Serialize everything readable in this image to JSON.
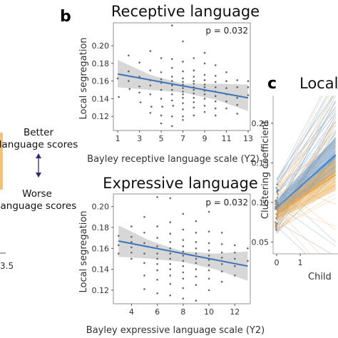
{
  "figure": {
    "panel_b_letter": "b",
    "panel_c_letter": "c",
    "left_partial_tick": "3.5",
    "scale_labels": {
      "better": "Better",
      "better2": "language scores",
      "worse": "Worse",
      "worse2": "language scores"
    }
  },
  "chart_data": [
    {
      "type": "scatter",
      "title": "Receptive language",
      "xlabel": "Bayley receptive language scale (Y2)",
      "ylabel": "Local segregation",
      "annotation": "p = 0.032",
      "xlim": [
        0.6,
        13.2
      ],
      "ylim": [
        0.104,
        0.226
      ],
      "xticks": [
        1,
        3,
        5,
        7,
        9,
        11,
        13
      ],
      "yticks": [
        0.12,
        0.14,
        0.16,
        0.18,
        0.2
      ],
      "ytick_labels": [
        "0.12",
        "0.14",
        "0.16",
        "0.18",
        "0.20"
      ],
      "fit": {
        "x": [
          1,
          13
        ],
        "y": [
          0.168,
          0.141
        ]
      },
      "ci_band": {
        "x": [
          1,
          4,
          7,
          10,
          13
        ],
        "lower": [
          0.153,
          0.15,
          0.147,
          0.139,
          0.126
        ],
        "upper": [
          0.184,
          0.167,
          0.157,
          0.157,
          0.156
        ]
      },
      "points": [
        [
          1,
          0.163
        ],
        [
          1.1,
          0.142
        ],
        [
          2,
          0.16
        ],
        [
          2,
          0.171
        ],
        [
          2,
          0.189
        ],
        [
          2.1,
          0.151
        ],
        [
          3,
          0.181
        ],
        [
          3,
          0.165
        ],
        [
          3,
          0.154
        ],
        [
          3,
          0.147
        ],
        [
          3.1,
          0.136
        ],
        [
          4,
          0.194
        ],
        [
          4,
          0.172
        ],
        [
          4,
          0.161
        ],
        [
          4,
          0.155
        ],
        [
          4,
          0.145
        ],
        [
          4.1,
          0.131
        ],
        [
          4,
          0.124
        ],
        [
          5,
          0.186
        ],
        [
          5,
          0.17
        ],
        [
          5,
          0.162
        ],
        [
          5,
          0.158
        ],
        [
          5,
          0.15
        ],
        [
          5,
          0.14
        ],
        [
          5.1,
          0.131
        ],
        [
          5,
          0.121
        ],
        [
          5,
          0.112
        ],
        [
          6,
          0.223
        ],
        [
          6,
          0.185
        ],
        [
          6,
          0.175
        ],
        [
          6,
          0.165
        ],
        [
          6,
          0.16
        ],
        [
          6,
          0.155
        ],
        [
          6,
          0.15
        ],
        [
          6,
          0.145
        ],
        [
          6,
          0.138
        ],
        [
          6.1,
          0.132
        ],
        [
          6,
          0.12
        ],
        [
          6,
          0.109
        ],
        [
          7,
          0.205
        ],
        [
          7,
          0.182
        ],
        [
          7,
          0.171
        ],
        [
          7,
          0.163
        ],
        [
          7,
          0.159
        ],
        [
          7,
          0.156
        ],
        [
          7,
          0.152
        ],
        [
          7,
          0.148
        ],
        [
          7,
          0.145
        ],
        [
          7,
          0.141
        ],
        [
          7,
          0.135
        ],
        [
          7,
          0.128
        ],
        [
          7,
          0.12
        ],
        [
          7,
          0.116
        ],
        [
          8,
          0.186
        ],
        [
          8,
          0.172
        ],
        [
          8,
          0.165
        ],
        [
          8,
          0.16
        ],
        [
          8,
          0.157
        ],
        [
          8,
          0.153
        ],
        [
          8,
          0.15
        ],
        [
          8,
          0.146
        ],
        [
          8,
          0.141
        ],
        [
          8,
          0.136
        ],
        [
          8,
          0.13
        ],
        [
          8,
          0.121
        ],
        [
          9,
          0.192
        ],
        [
          9,
          0.18
        ],
        [
          9,
          0.167
        ],
        [
          9,
          0.161
        ],
        [
          9,
          0.156
        ],
        [
          9,
          0.153
        ],
        [
          9,
          0.149
        ],
        [
          9,
          0.145
        ],
        [
          9,
          0.14
        ],
        [
          9,
          0.132
        ],
        [
          9,
          0.125
        ],
        [
          10,
          0.178
        ],
        [
          10,
          0.166
        ],
        [
          10,
          0.159
        ],
        [
          10,
          0.153
        ],
        [
          10,
          0.148
        ],
        [
          10,
          0.143
        ],
        [
          10,
          0.137
        ],
        [
          10,
          0.129
        ],
        [
          10,
          0.121
        ],
        [
          11,
          0.17
        ],
        [
          11,
          0.16
        ],
        [
          11,
          0.152
        ],
        [
          11,
          0.145
        ],
        [
          11,
          0.137
        ],
        [
          11,
          0.129
        ],
        [
          12,
          0.161
        ],
        [
          12,
          0.153
        ],
        [
          12,
          0.141
        ],
        [
          12,
          0.133
        ],
        [
          12,
          0.123
        ],
        [
          13,
          0.16
        ],
        [
          13,
          0.144
        ],
        [
          13,
          0.153
        ]
      ]
    },
    {
      "type": "scatter",
      "title": "Expressive language",
      "xlabel": "Bayley expressive language scale (Y2)",
      "ylabel": "Local segregation",
      "annotation": "p = 0.032",
      "xlim": [
        2.6,
        13.2
      ],
      "ylim": [
        0.107,
        0.212
      ],
      "xticks": [
        4,
        6,
        8,
        10,
        12
      ],
      "yticks": [
        0.12,
        0.14,
        0.16,
        0.18,
        0.2
      ],
      "ytick_labels": [
        "0.12",
        "0.14",
        "0.16",
        "0.18",
        "0.20"
      ],
      "fit": {
        "x": [
          3,
          13
        ],
        "y": [
          0.167,
          0.143
        ]
      },
      "ci_band": {
        "x": [
          3,
          5.5,
          8,
          10.5,
          13
        ],
        "lower": [
          0.152,
          0.15,
          0.147,
          0.14,
          0.129
        ],
        "upper": [
          0.182,
          0.167,
          0.157,
          0.155,
          0.157
        ]
      },
      "points": [
        [
          3,
          0.155
        ],
        [
          3,
          0.163
        ],
        [
          3,
          0.172
        ],
        [
          4,
          0.181
        ],
        [
          4,
          0.171
        ],
        [
          4,
          0.166
        ],
        [
          4,
          0.161
        ],
        [
          4,
          0.156
        ],
        [
          4,
          0.15
        ],
        [
          5,
          0.19
        ],
        [
          5,
          0.175
        ],
        [
          5,
          0.165
        ],
        [
          5,
          0.155
        ],
        [
          5,
          0.146
        ],
        [
          5,
          0.134
        ],
        [
          5,
          0.121
        ],
        [
          6,
          0.209
        ],
        [
          6,
          0.181
        ],
        [
          6,
          0.17
        ],
        [
          6,
          0.162
        ],
        [
          6,
          0.155
        ],
        [
          6,
          0.15
        ],
        [
          6,
          0.145
        ],
        [
          6,
          0.139
        ],
        [
          6,
          0.13
        ],
        [
          6,
          0.117
        ],
        [
          7,
          0.208
        ],
        [
          7,
          0.185
        ],
        [
          7,
          0.174
        ],
        [
          7,
          0.166
        ],
        [
          7,
          0.16
        ],
        [
          7,
          0.155
        ],
        [
          7,
          0.15
        ],
        [
          7,
          0.145
        ],
        [
          7,
          0.14
        ],
        [
          7,
          0.134
        ],
        [
          7,
          0.126
        ],
        [
          7,
          0.115
        ],
        [
          8,
          0.193
        ],
        [
          8,
          0.178
        ],
        [
          8,
          0.168
        ],
        [
          8,
          0.162
        ],
        [
          8,
          0.157
        ],
        [
          8,
          0.153
        ],
        [
          8,
          0.148
        ],
        [
          8,
          0.143
        ],
        [
          8,
          0.137
        ],
        [
          8,
          0.131
        ],
        [
          8,
          0.122
        ],
        [
          8,
          0.112
        ],
        [
          9,
          0.186
        ],
        [
          9,
          0.175
        ],
        [
          9,
          0.166
        ],
        [
          9,
          0.16
        ],
        [
          9,
          0.155
        ],
        [
          9,
          0.15
        ],
        [
          9,
          0.146
        ],
        [
          9,
          0.14
        ],
        [
          9,
          0.133
        ],
        [
          9,
          0.125
        ],
        [
          9,
          0.11
        ],
        [
          10,
          0.195
        ],
        [
          10,
          0.176
        ],
        [
          10,
          0.165
        ],
        [
          10,
          0.158
        ],
        [
          10,
          0.153
        ],
        [
          10,
          0.149
        ],
        [
          10,
          0.144
        ],
        [
          10,
          0.139
        ],
        [
          10,
          0.131
        ],
        [
          10,
          0.12
        ],
        [
          11,
          0.175
        ],
        [
          11,
          0.164
        ],
        [
          11,
          0.156
        ],
        [
          11,
          0.151
        ],
        [
          11,
          0.145
        ],
        [
          11,
          0.138
        ],
        [
          11,
          0.128
        ],
        [
          12,
          0.163
        ],
        [
          12,
          0.156
        ],
        [
          12,
          0.15
        ],
        [
          12,
          0.143
        ],
        [
          12,
          0.134
        ],
        [
          13,
          0.16
        ],
        [
          13,
          0.148
        ]
      ]
    },
    {
      "type": "line",
      "title": "Local",
      "xlabel": "Child",
      "ylabel": "Clustering coefficient",
      "xlim": [
        -0.15,
        2.6
      ],
      "ylim": [
        0.035,
        0.235
      ],
      "xticks": [
        0,
        1
      ],
      "yticks": [
        0.05,
        0.1,
        0.15,
        0.2
      ],
      "ytick_labels": [
        "0.05",
        "0.10",
        "0.15",
        "0.20"
      ],
      "colors": {
        "blue": "#4a86c5",
        "orange": "#f0a640"
      },
      "series": [
        {
          "color": "blue",
          "x": [
            0,
            2.5
          ],
          "y": [
            0.093,
            0.16
          ],
          "band": [
            0.01,
            0.022
          ]
        },
        {
          "color": "orange",
          "x": [
            0,
            2.5
          ],
          "y": [
            0.086,
            0.135
          ],
          "band": [
            0.008,
            0.02
          ]
        }
      ]
    }
  ]
}
